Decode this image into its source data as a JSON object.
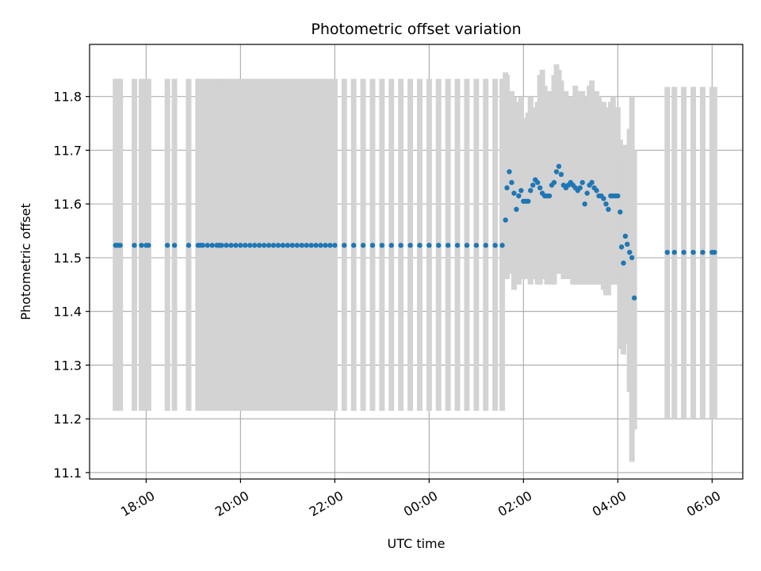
{
  "chart_data": {
    "type": "scatter",
    "title": "Photometric offset variation",
    "xlabel": "UTC time",
    "ylabel": "Photometric offset",
    "grid": true,
    "legend": "none",
    "x_unit": "hours",
    "xlim": [
      -7.2,
      6.65
    ],
    "ylim": [
      11.088,
      11.897
    ],
    "x_ticks": [
      {
        "value": -6,
        "label": "18:00"
      },
      {
        "value": -4,
        "label": "20:00"
      },
      {
        "value": -2,
        "label": "22:00"
      },
      {
        "value": 0,
        "label": "00:00"
      },
      {
        "value": 2,
        "label": "02:00"
      },
      {
        "value": 4,
        "label": "04:00"
      },
      {
        "value": 6,
        "label": "06:00"
      }
    ],
    "y_ticks": [
      11.1,
      11.2,
      11.3,
      11.4,
      11.5,
      11.6,
      11.7,
      11.8
    ],
    "colors": {
      "points": "#1f77b4",
      "errorbars": "#d3d3d3"
    },
    "series": [
      {
        "kind": "scatter_with_errorbars",
        "x": [
          -6.65,
          -6.6,
          -6.55,
          -6.25,
          -6.1,
          -6.0,
          -5.95,
          -5.55,
          -5.4,
          -5.1,
          -4.9,
          -4.85,
          -4.8,
          -4.7,
          -4.6,
          -4.5,
          -4.45,
          -4.4,
          -4.3,
          -4.2,
          -4.1,
          -4.0,
          -3.9,
          -3.8,
          -3.7,
          -3.6,
          -3.5,
          -3.4,
          -3.3,
          -3.2,
          -3.1,
          -3.0,
          -2.9,
          -2.8,
          -2.7,
          -2.6,
          -2.5,
          -2.4,
          -2.3,
          -2.2,
          -2.1,
          -2.0,
          -1.8,
          -1.6,
          -1.4,
          -1.2,
          -1.0,
          -0.8,
          -0.6,
          -0.4,
          -0.2,
          0.0,
          0.2,
          0.4,
          0.6,
          0.8,
          1.0,
          1.2,
          1.4,
          1.55,
          1.62,
          1.65,
          1.7,
          1.75,
          1.8,
          1.85,
          1.9,
          1.95,
          2.0,
          2.05,
          2.1,
          2.15,
          2.2,
          2.25,
          2.3,
          2.35,
          2.4,
          2.45,
          2.5,
          2.55,
          2.6,
          2.65,
          2.7,
          2.75,
          2.8,
          2.85,
          2.9,
          2.95,
          3.0,
          3.05,
          3.1,
          3.15,
          3.2,
          3.25,
          3.3,
          3.35,
          3.4,
          3.45,
          3.5,
          3.55,
          3.6,
          3.65,
          3.7,
          3.75,
          3.8,
          3.85,
          3.9,
          3.95,
          4.0,
          4.05,
          4.08,
          4.12,
          4.16,
          4.2,
          4.25,
          4.3,
          4.35,
          5.05,
          5.2,
          5.4,
          5.6,
          5.8,
          6.0,
          6.05
        ],
        "y": [
          11.523,
          11.523,
          11.523,
          11.523,
          11.523,
          11.523,
          11.523,
          11.523,
          11.523,
          11.523,
          11.523,
          11.523,
          11.523,
          11.523,
          11.523,
          11.523,
          11.523,
          11.523,
          11.523,
          11.523,
          11.523,
          11.523,
          11.523,
          11.523,
          11.523,
          11.523,
          11.523,
          11.523,
          11.523,
          11.523,
          11.523,
          11.523,
          11.523,
          11.523,
          11.523,
          11.523,
          11.523,
          11.523,
          11.523,
          11.523,
          11.523,
          11.523,
          11.523,
          11.523,
          11.523,
          11.523,
          11.523,
          11.523,
          11.523,
          11.523,
          11.523,
          11.523,
          11.523,
          11.523,
          11.523,
          11.523,
          11.523,
          11.523,
          11.523,
          11.523,
          11.57,
          11.63,
          11.66,
          11.64,
          11.62,
          11.59,
          11.615,
          11.625,
          11.605,
          11.605,
          11.605,
          11.625,
          11.635,
          11.645,
          11.64,
          11.63,
          11.62,
          11.615,
          11.615,
          11.615,
          11.635,
          11.64,
          11.66,
          11.67,
          11.655,
          11.635,
          11.63,
          11.635,
          11.64,
          11.635,
          11.63,
          11.625,
          11.63,
          11.64,
          11.6,
          11.62,
          11.635,
          11.64,
          11.63,
          11.625,
          11.615,
          11.615,
          11.61,
          11.6,
          11.59,
          11.615,
          11.615,
          11.615,
          11.615,
          11.585,
          11.52,
          11.49,
          11.54,
          11.525,
          11.51,
          11.5,
          11.425,
          11.51,
          11.51,
          11.51,
          11.51,
          11.51,
          11.51,
          11.51
        ],
        "err_low": [
          11.215,
          11.215,
          11.215,
          11.215,
          11.215,
          11.215,
          11.215,
          11.215,
          11.215,
          11.215,
          11.215,
          11.215,
          11.215,
          11.215,
          11.215,
          11.215,
          11.215,
          11.215,
          11.215,
          11.215,
          11.215,
          11.215,
          11.215,
          11.215,
          11.215,
          11.215,
          11.215,
          11.215,
          11.215,
          11.215,
          11.215,
          11.215,
          11.215,
          11.215,
          11.215,
          11.215,
          11.215,
          11.215,
          11.215,
          11.215,
          11.215,
          11.215,
          11.215,
          11.215,
          11.215,
          11.215,
          11.215,
          11.215,
          11.215,
          11.215,
          11.215,
          11.215,
          11.215,
          11.215,
          11.215,
          11.215,
          11.215,
          11.215,
          11.215,
          11.215,
          11.46,
          11.46,
          11.47,
          11.47,
          11.44,
          11.46,
          11.45,
          11.46,
          11.47,
          11.46,
          11.46,
          11.45,
          11.46,
          11.46,
          11.45,
          11.45,
          11.46,
          11.46,
          11.45,
          11.47,
          11.45,
          11.45,
          11.47,
          11.48,
          11.47,
          11.46,
          11.46,
          11.47,
          11.46,
          11.45,
          11.45,
          11.45,
          11.45,
          11.45,
          11.45,
          11.45,
          11.45,
          11.45,
          11.45,
          11.45,
          11.45,
          11.45,
          11.44,
          11.43,
          11.43,
          11.45,
          11.45,
          11.45,
          11.45,
          11.33,
          11.35,
          11.32,
          11.35,
          11.34,
          11.25,
          11.12,
          11.18,
          11.2,
          11.2,
          11.2,
          11.2,
          11.2,
          11.2,
          11.2
        ],
        "err_high": [
          11.833,
          11.833,
          11.833,
          11.833,
          11.833,
          11.833,
          11.833,
          11.833,
          11.833,
          11.833,
          11.833,
          11.833,
          11.833,
          11.833,
          11.833,
          11.833,
          11.833,
          11.833,
          11.833,
          11.833,
          11.833,
          11.833,
          11.833,
          11.833,
          11.833,
          11.833,
          11.833,
          11.833,
          11.833,
          11.833,
          11.833,
          11.833,
          11.833,
          11.833,
          11.833,
          11.833,
          11.833,
          11.833,
          11.833,
          11.833,
          11.833,
          11.833,
          11.833,
          11.833,
          11.833,
          11.833,
          11.833,
          11.833,
          11.833,
          11.833,
          11.833,
          11.833,
          11.833,
          11.833,
          11.833,
          11.833,
          11.833,
          11.833,
          11.833,
          11.833,
          11.845,
          11.84,
          11.8,
          11.81,
          11.8,
          11.79,
          11.77,
          11.8,
          11.76,
          11.76,
          11.77,
          11.8,
          11.78,
          11.76,
          11.79,
          11.84,
          11.85,
          11.82,
          11.8,
          11.81,
          11.8,
          11.84,
          11.86,
          11.85,
          11.83,
          11.8,
          11.81,
          11.8,
          11.8,
          11.79,
          11.82,
          11.81,
          11.8,
          11.81,
          11.78,
          11.8,
          11.82,
          11.83,
          11.8,
          11.81,
          11.8,
          11.78,
          11.79,
          11.78,
          11.76,
          11.79,
          11.8,
          11.75,
          11.78,
          11.72,
          11.7,
          11.68,
          11.71,
          11.69,
          11.74,
          11.8,
          11.7,
          11.818,
          11.818,
          11.818,
          11.818,
          11.818,
          11.818,
          11.818
        ]
      }
    ]
  }
}
